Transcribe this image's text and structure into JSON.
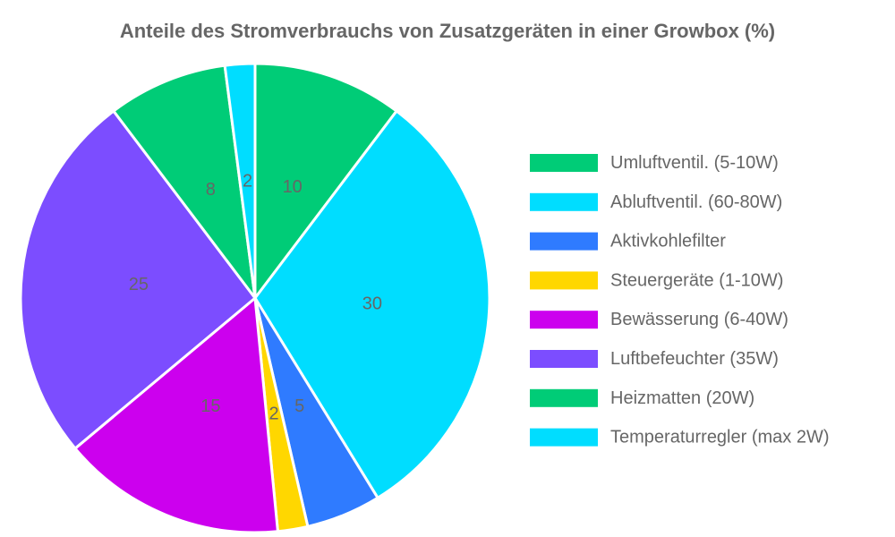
{
  "chart_data": {
    "type": "pie",
    "title": "Anteile des Stromverbrauchs von Zusatzgeräten in einer Growbox (%)",
    "legend_position": "right",
    "slices": [
      {
        "label": "Umluftventil. (5-10W)",
        "value": 10,
        "color": "#00cc77"
      },
      {
        "label": "Abluftventil. (60-80W)",
        "value": 30,
        "color": "#00ddff"
      },
      {
        "label": "Aktivkohlefilter",
        "value": 5,
        "color": "#2f7bff"
      },
      {
        "label": "Steuergeräte (1-10W)",
        "value": 2,
        "color": "#ffd700"
      },
      {
        "label": "Bewässerung (6-40W)",
        "value": 15,
        "color": "#cc00ee"
      },
      {
        "label": "Luftbefeuchter (35W)",
        "value": 25,
        "color": "#7c4dff"
      },
      {
        "label": "Heizmatten (20W)",
        "value": 8,
        "color": "#00cc77"
      },
      {
        "label": "Temperaturregler (max 2W)",
        "value": 2,
        "color": "#00ddff"
      }
    ]
  }
}
